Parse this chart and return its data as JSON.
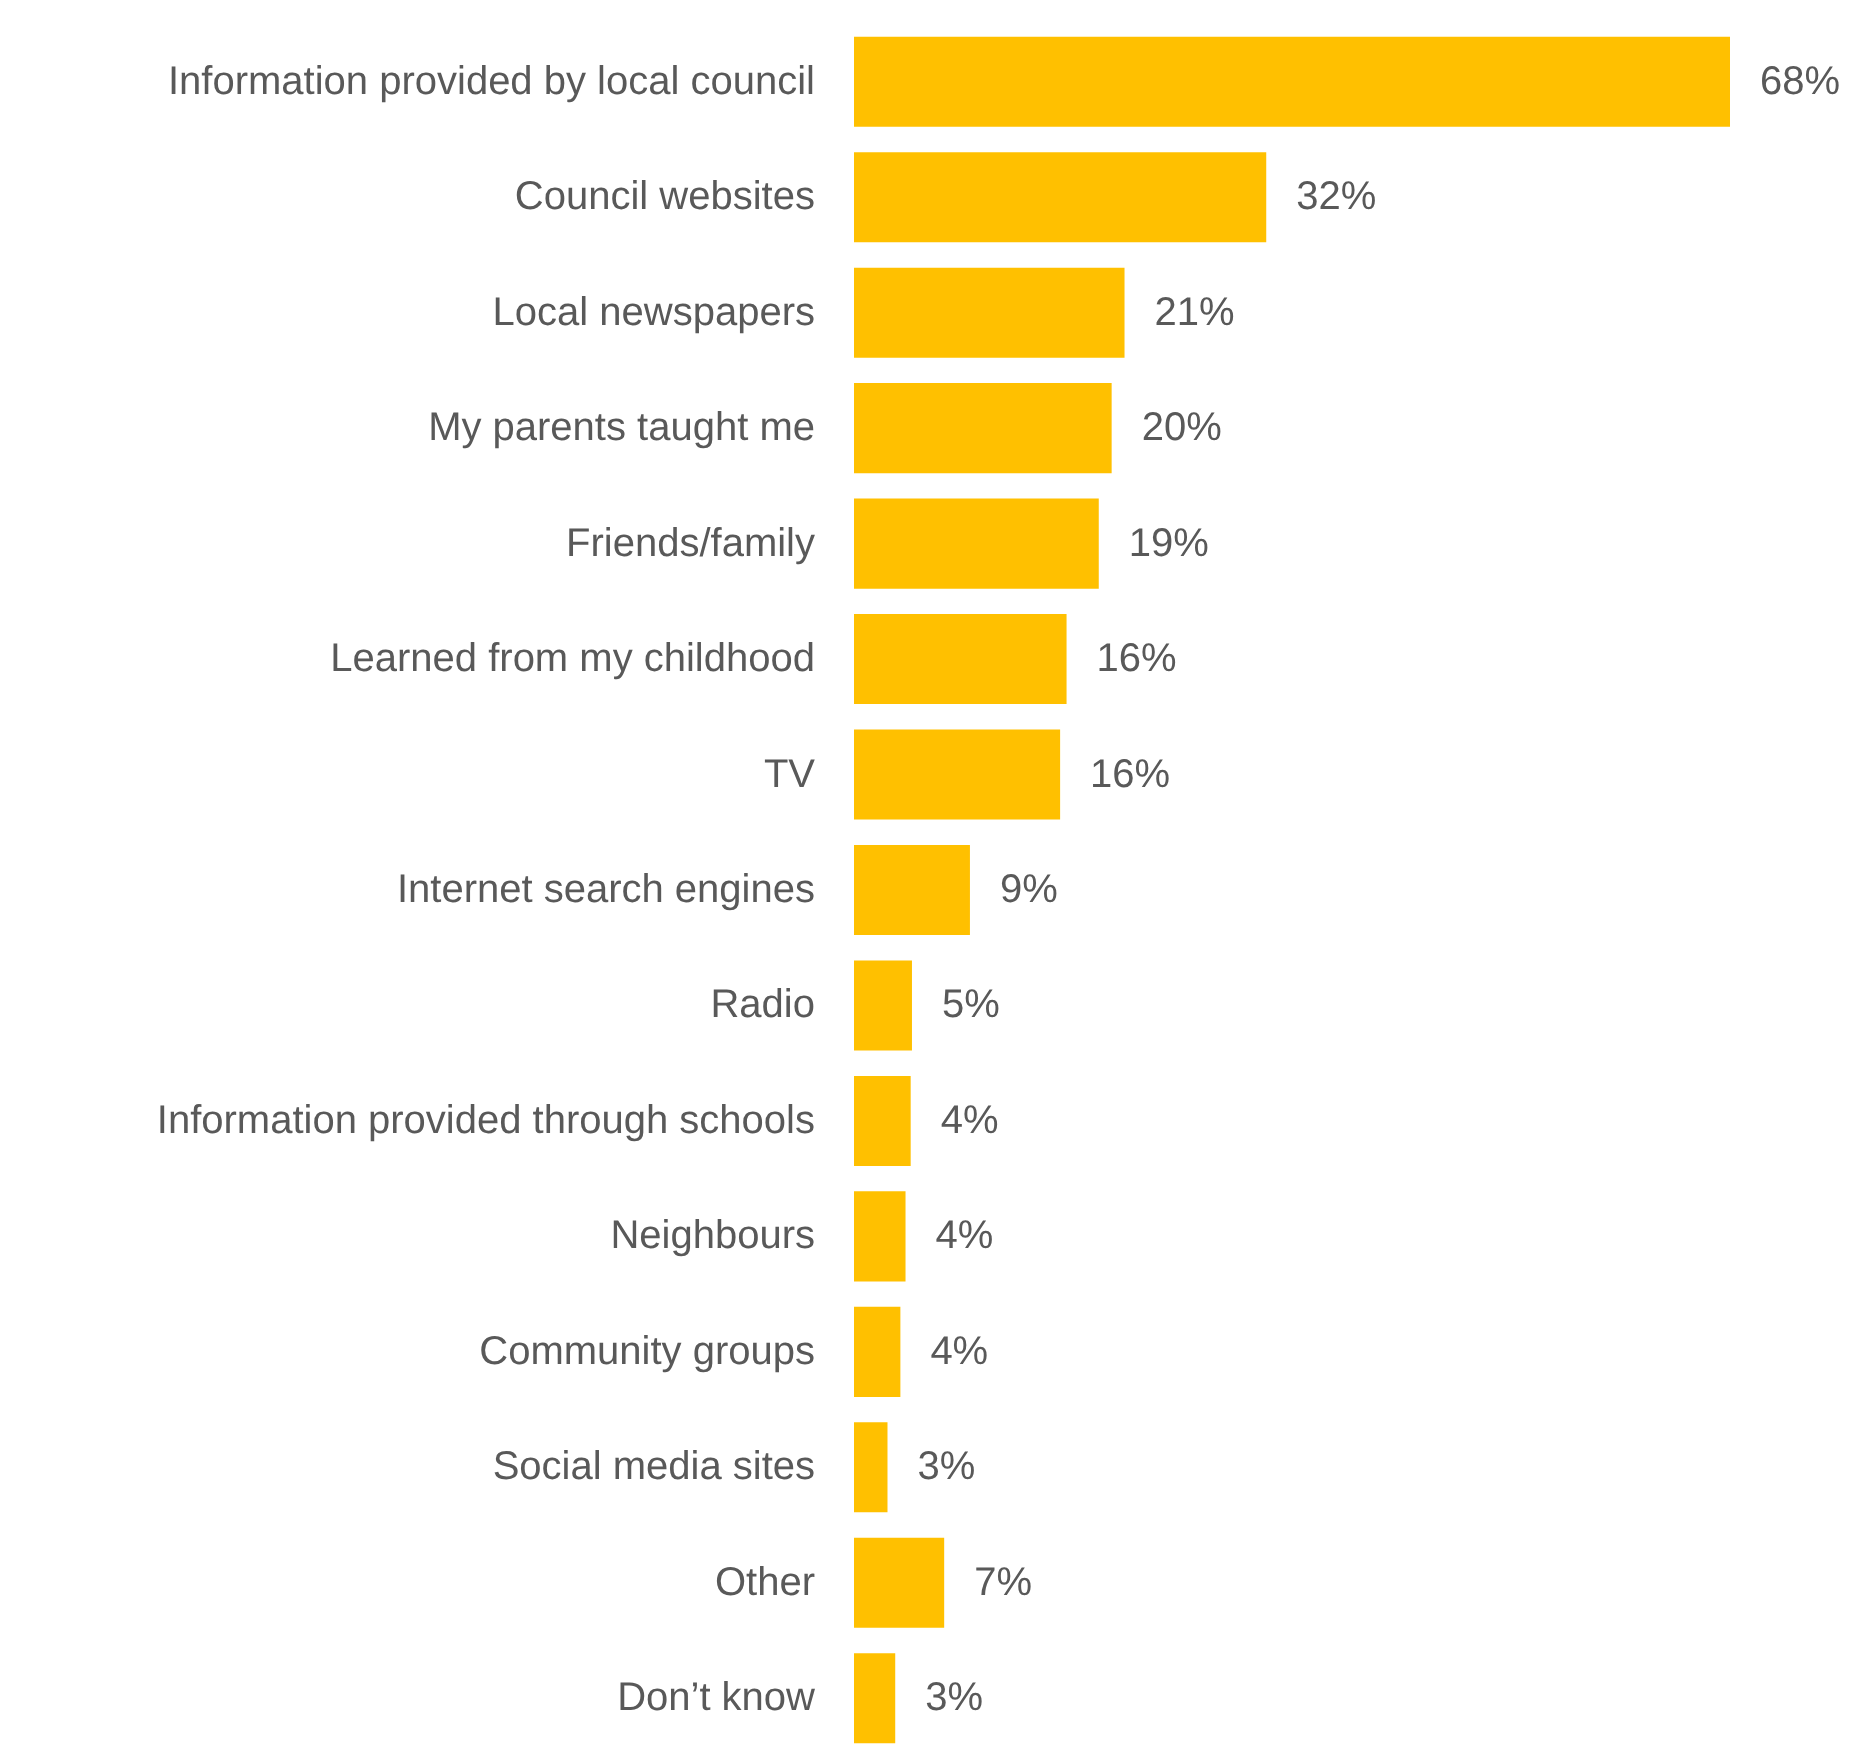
{
  "chart_data": {
    "type": "bar",
    "orientation": "horizontal",
    "categories": [
      "Information provided by local council",
      "Council websites",
      "Local newspapers",
      "My parents taught me",
      "Friends/family",
      "Learned from my childhood",
      "TV",
      "Internet search engines",
      "Radio",
      "Information provided through schools",
      "Neighbours",
      "Community groups",
      "Social media sites",
      "Other",
      "Don’t know"
    ],
    "values": [
      68,
      32,
      21,
      20,
      19,
      16.5,
      16,
      9,
      4.5,
      4.4,
      4,
      3.6,
      2.6,
      7,
      3.2
    ],
    "value_labels": [
      "68%",
      "32%",
      "21%",
      "20%",
      "19%",
      "16%",
      "16%",
      "9%",
      "5%",
      "4%",
      "4%",
      "4%",
      "3%",
      "7%",
      "3%"
    ],
    "color": "#ffc000"
  }
}
